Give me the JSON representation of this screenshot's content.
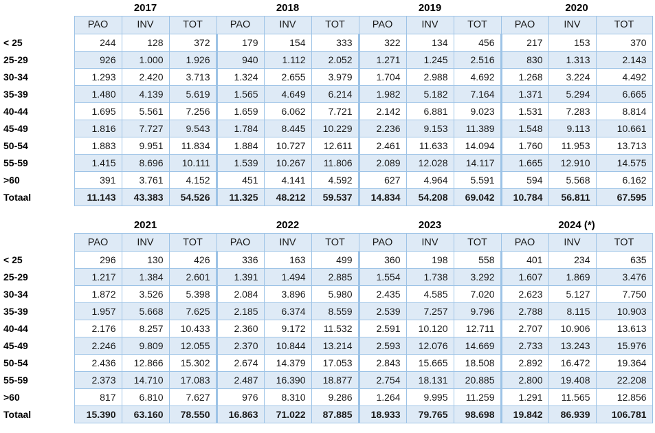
{
  "page": {
    "background": "#ffffff"
  },
  "colors": {
    "row_fill": "#deeaf6",
    "border": "#9dc3e6",
    "text": "#1a1a1a",
    "label_text": "#000000"
  },
  "chart_data": [
    {
      "type": "table",
      "title": "",
      "years": [
        "2017",
        "2018",
        "2019",
        "2020"
      ],
      "sub_headers": [
        "PAO",
        "INV",
        "TOT"
      ],
      "row_labels": [
        "< 25",
        "25-29",
        "30-34",
        "35-39",
        "40-44",
        "45-49",
        "50-54",
        "55-59",
        ">60",
        "Totaal"
      ],
      "rows": [
        {
          "label": "< 25",
          "values": [
            "244",
            "128",
            "372",
            "179",
            "154",
            "333",
            "322",
            "134",
            "456",
            "217",
            "153",
            "370"
          ]
        },
        {
          "label": "25-29",
          "values": [
            "926",
            "1.000",
            "1.926",
            "940",
            "1.112",
            "2.052",
            "1.271",
            "1.245",
            "2.516",
            "830",
            "1.313",
            "2.143"
          ]
        },
        {
          "label": "30-34",
          "values": [
            "1.293",
            "2.420",
            "3.713",
            "1.324",
            "2.655",
            "3.979",
            "1.704",
            "2.988",
            "4.692",
            "1.268",
            "3.224",
            "4.492"
          ]
        },
        {
          "label": "35-39",
          "values": [
            "1.480",
            "4.139",
            "5.619",
            "1.565",
            "4.649",
            "6.214",
            "1.982",
            "5.182",
            "7.164",
            "1.371",
            "5.294",
            "6.665"
          ]
        },
        {
          "label": "40-44",
          "values": [
            "1.695",
            "5.561",
            "7.256",
            "1.659",
            "6.062",
            "7.721",
            "2.142",
            "6.881",
            "9.023",
            "1.531",
            "7.283",
            "8.814"
          ]
        },
        {
          "label": "45-49",
          "values": [
            "1.816",
            "7.727",
            "9.543",
            "1.784",
            "8.445",
            "10.229",
            "2.236",
            "9.153",
            "11.389",
            "1.548",
            "9.113",
            "10.661"
          ]
        },
        {
          "label": "50-54",
          "values": [
            "1.883",
            "9.951",
            "11.834",
            "1.884",
            "10.727",
            "12.611",
            "2.461",
            "11.633",
            "14.094",
            "1.760",
            "11.953",
            "13.713"
          ]
        },
        {
          "label": "55-59",
          "values": [
            "1.415",
            "8.696",
            "10.111",
            "1.539",
            "10.267",
            "11.806",
            "2.089",
            "12.028",
            "14.117",
            "1.665",
            "12.910",
            "14.575"
          ]
        },
        {
          "label": ">60",
          "values": [
            "391",
            "3.761",
            "4.152",
            "451",
            "4.141",
            "4.592",
            "627",
            "4.964",
            "5.591",
            "594",
            "5.568",
            "6.162"
          ]
        },
        {
          "label": "Totaal",
          "values": [
            "11.143",
            "43.383",
            "54.526",
            "11.325",
            "48.212",
            "59.537",
            "14.834",
            "54.208",
            "69.042",
            "10.784",
            "56.811",
            "67.595"
          ]
        }
      ]
    },
    {
      "type": "table",
      "title": "",
      "years": [
        "2021",
        "2022",
        "2023",
        "2024 (*)"
      ],
      "sub_headers": [
        "PAO",
        "INV",
        "TOT"
      ],
      "row_labels": [
        "< 25",
        "25-29",
        "30-34",
        "35-39",
        "40-44",
        "45-49",
        "50-54",
        "55-59",
        ">60",
        "Totaal"
      ],
      "rows": [
        {
          "label": "< 25",
          "values": [
            "296",
            "130",
            "426",
            "336",
            "163",
            "499",
            "360",
            "198",
            "558",
            "401",
            "234",
            "635"
          ]
        },
        {
          "label": "25-29",
          "values": [
            "1.217",
            "1.384",
            "2.601",
            "1.391",
            "1.494",
            "2.885",
            "1.554",
            "1.738",
            "3.292",
            "1.607",
            "1.869",
            "3.476"
          ]
        },
        {
          "label": "30-34",
          "values": [
            "1.872",
            "3.526",
            "5.398",
            "2.084",
            "3.896",
            "5.980",
            "2.435",
            "4.585",
            "7.020",
            "2.623",
            "5.127",
            "7.750"
          ]
        },
        {
          "label": "35-39",
          "values": [
            "1.957",
            "5.668",
            "7.625",
            "2.185",
            "6.374",
            "8.559",
            "2.539",
            "7.257",
            "9.796",
            "2.788",
            "8.115",
            "10.903"
          ]
        },
        {
          "label": "40-44",
          "values": [
            "2.176",
            "8.257",
            "10.433",
            "2.360",
            "9.172",
            "11.532",
            "2.591",
            "10.120",
            "12.711",
            "2.707",
            "10.906",
            "13.613"
          ]
        },
        {
          "label": "45-49",
          "values": [
            "2.246",
            "9.809",
            "12.055",
            "2.370",
            "10.844",
            "13.214",
            "2.593",
            "12.076",
            "14.669",
            "2.733",
            "13.243",
            "15.976"
          ]
        },
        {
          "label": "50-54",
          "values": [
            "2.436",
            "12.866",
            "15.302",
            "2.674",
            "14.379",
            "17.053",
            "2.843",
            "15.665",
            "18.508",
            "2.892",
            "16.472",
            "19.364"
          ]
        },
        {
          "label": "55-59",
          "values": [
            "2.373",
            "14.710",
            "17.083",
            "2.487",
            "16.390",
            "18.877",
            "2.754",
            "18.131",
            "20.885",
            "2.800",
            "19.408",
            "22.208"
          ]
        },
        {
          "label": ">60",
          "values": [
            "817",
            "6.810",
            "7.627",
            "976",
            "8.310",
            "9.286",
            "1.264",
            "9.995",
            "11.259",
            "1.291",
            "11.565",
            "12.856"
          ]
        },
        {
          "label": "Totaal",
          "values": [
            "15.390",
            "63.160",
            "78.550",
            "16.863",
            "71.022",
            "87.885",
            "18.933",
            "79.765",
            "98.698",
            "19.842",
            "86.939",
            "106.781"
          ]
        }
      ]
    }
  ]
}
